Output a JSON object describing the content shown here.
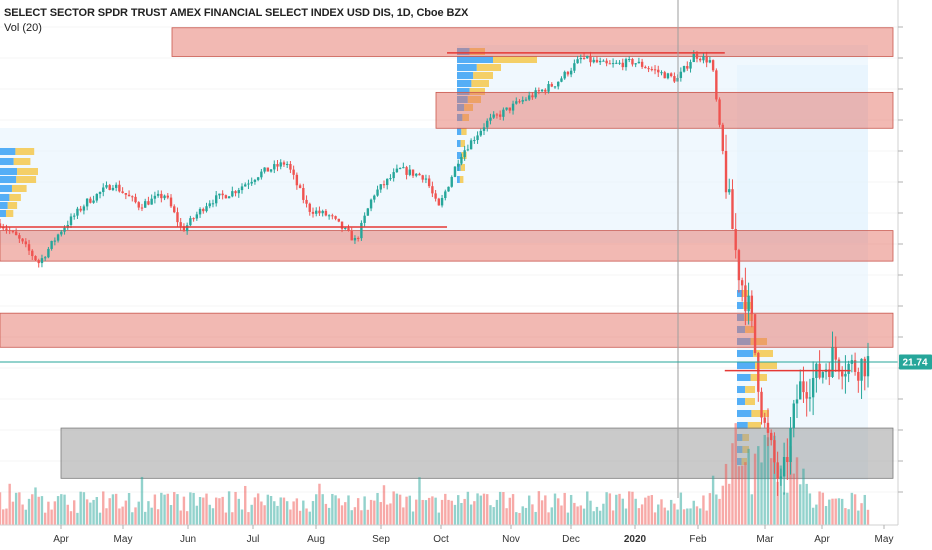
{
  "header": {
    "symbol_title": "SELECT SECTOR SPDR TRUST AMEX FINANCIAL SELECT INDEX USD DIS, 1D, Cboe BZX",
    "volume_label": "Vol (20)"
  },
  "price_badge": "21.74",
  "colors": {
    "up": "#26a69a",
    "down": "#ef5350",
    "zone_red": "#e57368",
    "zone_gray": "#9e9e9e",
    "poc_line": "#e53935",
    "price_line": "#26a69a",
    "profile_blue": "#42a5f5",
    "profile_yellow": "#f5c84c",
    "profile_bg": "#e3f2fd"
  },
  "chart_data": {
    "type": "candlestick",
    "timeframe": "1D",
    "x_tick_labels": [
      "Apr",
      "May",
      "Jun",
      "Jul",
      "Aug",
      "Sep",
      "Oct",
      "Nov",
      "Dec",
      "2020",
      "Feb",
      "Mar",
      "Apr",
      "May"
    ],
    "last_price": 21.74,
    "ylim": [
      17.2,
      31.6
    ],
    "price_path": [
      {
        "t": 0,
        "price": 25.6
      },
      {
        "t": 0.02,
        "price": 25.2
      },
      {
        "t": 0.045,
        "price": 24.5
      },
      {
        "t": 0.07,
        "price": 25.4
      },
      {
        "t": 0.1,
        "price": 26.2
      },
      {
        "t": 0.13,
        "price": 26.7
      },
      {
        "t": 0.16,
        "price": 26.1
      },
      {
        "t": 0.19,
        "price": 26.4
      },
      {
        "t": 0.21,
        "price": 25.4
      },
      {
        "t": 0.24,
        "price": 26.2
      },
      {
        "t": 0.27,
        "price": 26.5
      },
      {
        "t": 0.3,
        "price": 27.0
      },
      {
        "t": 0.33,
        "price": 27.3
      },
      {
        "t": 0.355,
        "price": 26.0
      },
      {
        "t": 0.38,
        "price": 25.8
      },
      {
        "t": 0.41,
        "price": 25.1
      },
      {
        "t": 0.43,
        "price": 26.4
      },
      {
        "t": 0.46,
        "price": 27.1
      },
      {
        "t": 0.49,
        "price": 26.9
      },
      {
        "t": 0.505,
        "price": 26.0
      },
      {
        "t": 0.53,
        "price": 27.5
      },
      {
        "t": 0.56,
        "price": 28.4
      },
      {
        "t": 0.6,
        "price": 29.0
      },
      {
        "t": 0.64,
        "price": 29.5
      },
      {
        "t": 0.67,
        "price": 30.2
      },
      {
        "t": 0.7,
        "price": 30.0
      },
      {
        "t": 0.73,
        "price": 30.1
      },
      {
        "t": 0.76,
        "price": 29.8
      },
      {
        "t": 0.78,
        "price": 29.6
      },
      {
        "t": 0.8,
        "price": 30.3
      },
      {
        "t": 0.82,
        "price": 30.1
      },
      {
        "t": 0.835,
        "price": 27.0
      },
      {
        "t": 0.85,
        "price": 24.4
      },
      {
        "t": 0.865,
        "price": 23.0
      },
      {
        "t": 0.88,
        "price": 20.0
      },
      {
        "t": 0.9,
        "price": 18.2
      },
      {
        "t": 0.92,
        "price": 21.0
      },
      {
        "t": 0.94,
        "price": 21.3
      },
      {
        "t": 0.96,
        "price": 21.9
      },
      {
        "t": 0.98,
        "price": 21.6
      },
      {
        "t": 1,
        "price": 21.74
      }
    ],
    "horizontal_lines": [
      {
        "price": 25.5,
        "from_t": 0.0,
        "to_t": 0.515
      },
      {
        "price": 30.35,
        "from_t": 0.515,
        "to_t": 0.835
      },
      {
        "price": 21.5,
        "from_t": 0.835,
        "to_t": 0.98
      }
    ],
    "zones": [
      {
        "kind": "resistance",
        "low": 30.25,
        "high": 31.05,
        "from_t": 0.19,
        "to_t": 1.0
      },
      {
        "kind": "resistance",
        "low": 28.25,
        "high": 29.25,
        "from_t": 0.49,
        "to_t": 1.0
      },
      {
        "kind": "support",
        "low": 24.55,
        "high": 25.4,
        "from_t": 0.0,
        "to_t": 1.0
      },
      {
        "kind": "support",
        "low": 22.15,
        "high": 23.1,
        "from_t": 0.0,
        "to_t": 1.0
      },
      {
        "kind": "gray",
        "low": 18.5,
        "high": 19.9,
        "from_t": 0.065,
        "to_t": 1.0
      }
    ]
  }
}
